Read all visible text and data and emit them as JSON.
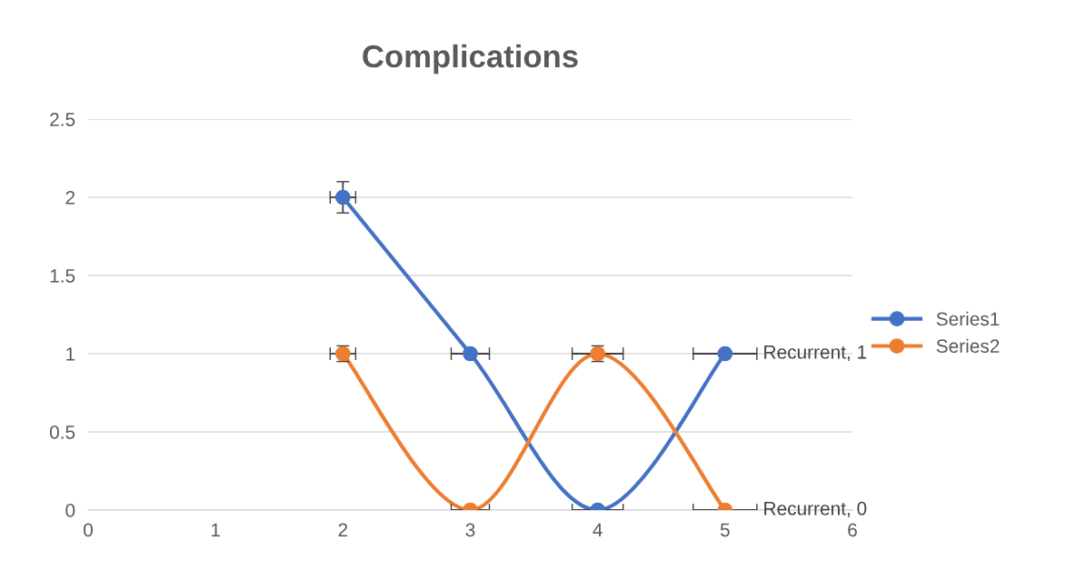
{
  "chart_data": {
    "type": "line",
    "title": "Complications",
    "x": [
      2,
      3,
      4,
      5
    ],
    "series": [
      {
        "name": "Series1",
        "color": "#4472c4",
        "values": [
          2,
          1,
          0,
          1
        ],
        "errors": [
          0.1,
          null,
          null,
          null
        ],
        "xerrors": [
          0.1,
          0.15,
          0.2,
          0.25
        ]
      },
      {
        "name": "Series2",
        "color": "#ed7d31",
        "values": [
          1,
          0,
          1,
          0
        ],
        "errors": [
          0.05,
          null,
          0.05,
          null
        ],
        "xerrors": [
          0.1,
          0.15,
          0.2,
          0.25
        ]
      }
    ],
    "xlim": [
      0,
      6
    ],
    "xticks": [
      0,
      1,
      2,
      3,
      4,
      5,
      6
    ],
    "ylim": [
      0,
      2.5
    ],
    "yticks": [
      0,
      0.5,
      1,
      1.5,
      2,
      2.5
    ],
    "grid": "y",
    "legend": "right",
    "marker": "circle",
    "line_style": "solid",
    "annotations": [
      {
        "text": "Recurrent, 1",
        "x": 5,
        "y": 1
      },
      {
        "text": "Recurrent, 0",
        "x": 5,
        "y": 0
      }
    ]
  }
}
